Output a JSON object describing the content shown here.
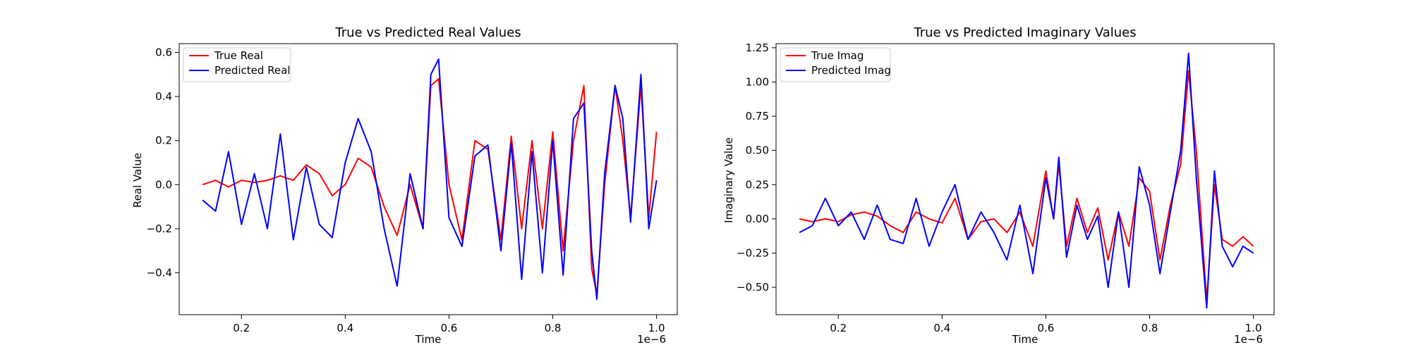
{
  "chart_data": [
    {
      "type": "line",
      "title": "True vs Predicted Real Values",
      "xlabel": "Time",
      "ylabel": "Real Value",
      "x_offset_label": "1e−6",
      "xlim": [
        0.08,
        1.04
      ],
      "ylim": [
        -0.59,
        0.64
      ],
      "xticks": [
        0.2,
        0.4,
        0.6,
        0.8,
        1.0
      ],
      "xtick_labels": [
        "0.2",
        "0.4",
        "0.6",
        "0.8",
        "1.0"
      ],
      "yticks": [
        -0.4,
        -0.2,
        0.0,
        0.2,
        0.4,
        0.6
      ],
      "ytick_labels": [
        "−0.4",
        "−0.2",
        "0.0",
        "0.2",
        "0.4",
        "0.6"
      ],
      "legend_position": "upper-left",
      "grid": false,
      "x": [
        0.125,
        0.15,
        0.175,
        0.2,
        0.225,
        0.25,
        0.275,
        0.3,
        0.325,
        0.35,
        0.375,
        0.4,
        0.425,
        0.45,
        0.475,
        0.5,
        0.525,
        0.55,
        0.565,
        0.58,
        0.6,
        0.625,
        0.65,
        0.675,
        0.7,
        0.72,
        0.74,
        0.76,
        0.78,
        0.8,
        0.82,
        0.84,
        0.86,
        0.875,
        0.885,
        0.9,
        0.92,
        0.935,
        0.95,
        0.97,
        0.985,
        1.0
      ],
      "series": [
        {
          "name": "True Real",
          "color": "#ff0000",
          "values": [
            0.0,
            0.02,
            -0.01,
            0.02,
            0.01,
            0.02,
            0.04,
            0.02,
            0.09,
            0.05,
            -0.05,
            0.0,
            0.12,
            0.08,
            -0.1,
            -0.23,
            0.0,
            -0.2,
            0.45,
            0.48,
            0.0,
            -0.25,
            0.2,
            0.16,
            -0.25,
            0.22,
            -0.2,
            0.2,
            -0.2,
            0.24,
            -0.3,
            0.2,
            0.45,
            -0.38,
            -0.5,
            0.0,
            0.45,
            0.2,
            -0.15,
            0.45,
            -0.15,
            0.24
          ]
        },
        {
          "name": "Predicted Real",
          "color": "#0000ff",
          "values": [
            -0.07,
            -0.12,
            0.15,
            -0.18,
            0.05,
            -0.2,
            0.23,
            -0.25,
            0.08,
            -0.18,
            -0.24,
            0.1,
            0.3,
            0.15,
            -0.2,
            -0.46,
            0.05,
            -0.2,
            0.5,
            0.57,
            -0.15,
            -0.28,
            0.13,
            0.18,
            -0.3,
            0.19,
            -0.43,
            0.15,
            -0.4,
            0.2,
            -0.41,
            0.3,
            0.37,
            -0.3,
            -0.52,
            0.05,
            0.45,
            0.3,
            -0.17,
            0.5,
            -0.2,
            0.02
          ]
        }
      ]
    },
    {
      "type": "line",
      "title": "True vs Predicted Imaginary Values",
      "xlabel": "Time",
      "ylabel": "Imaginary Value",
      "x_offset_label": "1e−6",
      "xlim": [
        0.08,
        1.04
      ],
      "ylim": [
        -0.7,
        1.28
      ],
      "xticks": [
        0.2,
        0.4,
        0.6,
        0.8,
        1.0
      ],
      "xtick_labels": [
        "0.2",
        "0.4",
        "0.6",
        "0.8",
        "1.0"
      ],
      "yticks": [
        -0.5,
        -0.25,
        0.0,
        0.25,
        0.5,
        0.75,
        1.0,
        1.25
      ],
      "ytick_labels": [
        "−0.50",
        "−0.25",
        "0.00",
        "0.25",
        "0.50",
        "0.75",
        "1.00",
        "1.25"
      ],
      "legend_position": "upper-left",
      "grid": false,
      "x": [
        0.125,
        0.15,
        0.175,
        0.2,
        0.225,
        0.25,
        0.275,
        0.3,
        0.325,
        0.35,
        0.375,
        0.4,
        0.425,
        0.45,
        0.475,
        0.5,
        0.525,
        0.55,
        0.575,
        0.6,
        0.615,
        0.625,
        0.64,
        0.66,
        0.68,
        0.7,
        0.72,
        0.74,
        0.76,
        0.78,
        0.8,
        0.82,
        0.84,
        0.86,
        0.875,
        0.89,
        0.91,
        0.925,
        0.94,
        0.96,
        0.98,
        1.0
      ],
      "series": [
        {
          "name": "True Imag",
          "color": "#ff0000",
          "values": [
            0.0,
            -0.02,
            0.0,
            -0.02,
            0.03,
            0.05,
            0.02,
            -0.05,
            -0.1,
            0.05,
            0.0,
            -0.03,
            0.15,
            -0.15,
            -0.02,
            0.0,
            -0.1,
            0.05,
            -0.2,
            0.35,
            0.0,
            0.4,
            -0.2,
            0.15,
            -0.1,
            0.08,
            -0.3,
            0.05,
            -0.2,
            0.3,
            0.2,
            -0.3,
            0.1,
            0.4,
            1.08,
            0.5,
            -0.6,
            0.25,
            -0.15,
            -0.2,
            -0.13,
            -0.2
          ]
        },
        {
          "name": "Predicted Imag",
          "color": "#0000ff",
          "values": [
            -0.1,
            -0.05,
            0.15,
            -0.05,
            0.05,
            -0.15,
            0.1,
            -0.15,
            -0.18,
            0.15,
            -0.2,
            0.05,
            0.25,
            -0.15,
            0.05,
            -0.1,
            -0.3,
            0.1,
            -0.4,
            0.3,
            0.0,
            0.45,
            -0.28,
            0.1,
            -0.15,
            0.02,
            -0.5,
            0.05,
            -0.5,
            0.38,
            0.1,
            -0.4,
            0.05,
            0.5,
            1.21,
            0.3,
            -0.65,
            0.35,
            -0.2,
            -0.35,
            -0.2,
            -0.25
          ]
        }
      ]
    }
  ]
}
